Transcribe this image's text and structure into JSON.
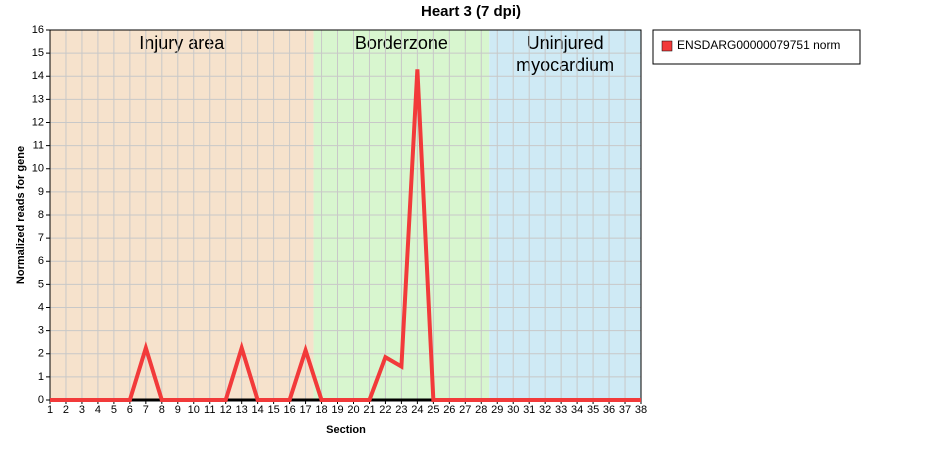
{
  "chart_data": {
    "type": "line",
    "title": "Heart 3 (7 dpi)",
    "x_label": "Section",
    "y_label": "Normalized reads for gene",
    "x": [
      1,
      2,
      3,
      4,
      5,
      6,
      7,
      8,
      9,
      10,
      11,
      12,
      13,
      14,
      15,
      16,
      17,
      18,
      19,
      20,
      21,
      22,
      23,
      24,
      25,
      26,
      27,
      28,
      29,
      30,
      31,
      32,
      33,
      34,
      35,
      36,
      37,
      38
    ],
    "series": [
      {
        "name": "ENSDARG00000079751 norm",
        "color": "#f23a3a",
        "values": [
          0,
          0,
          0,
          0,
          0,
          0,
          2.25,
          0,
          0,
          0,
          0,
          0,
          2.25,
          0,
          0,
          0,
          2.15,
          0,
          0,
          0,
          0,
          1.85,
          1.45,
          14.3,
          0,
          0,
          0,
          0,
          0,
          0,
          0,
          0,
          0,
          0,
          0,
          0,
          0,
          0
        ]
      }
    ],
    "xlim": [
      1,
      38
    ],
    "xticks": [
      1,
      2,
      3,
      4,
      5,
      6,
      7,
      8,
      9,
      10,
      11,
      12,
      13,
      14,
      15,
      16,
      17,
      18,
      19,
      20,
      21,
      22,
      23,
      24,
      25,
      26,
      27,
      28,
      29,
      30,
      31,
      32,
      33,
      34,
      35,
      36,
      37,
      38
    ],
    "ylim": [
      0,
      16
    ],
    "yticks": [
      0,
      1,
      2,
      3,
      4,
      5,
      6,
      7,
      8,
      9,
      10,
      11,
      12,
      13,
      14,
      15,
      16
    ],
    "grid": true,
    "legend": "right",
    "regions": [
      {
        "label": [
          "Injury area"
        ],
        "start": 1,
        "end": 17.5,
        "color": "#f6e2cc"
      },
      {
        "label": [
          "Borderzone"
        ],
        "start": 17.5,
        "end": 28.5,
        "color": "#d8f6cf"
      },
      {
        "label": [
          "Uninjured",
          "myocardium"
        ],
        "start": 28.5,
        "end": 38,
        "color": "#cfeaf5"
      }
    ]
  }
}
